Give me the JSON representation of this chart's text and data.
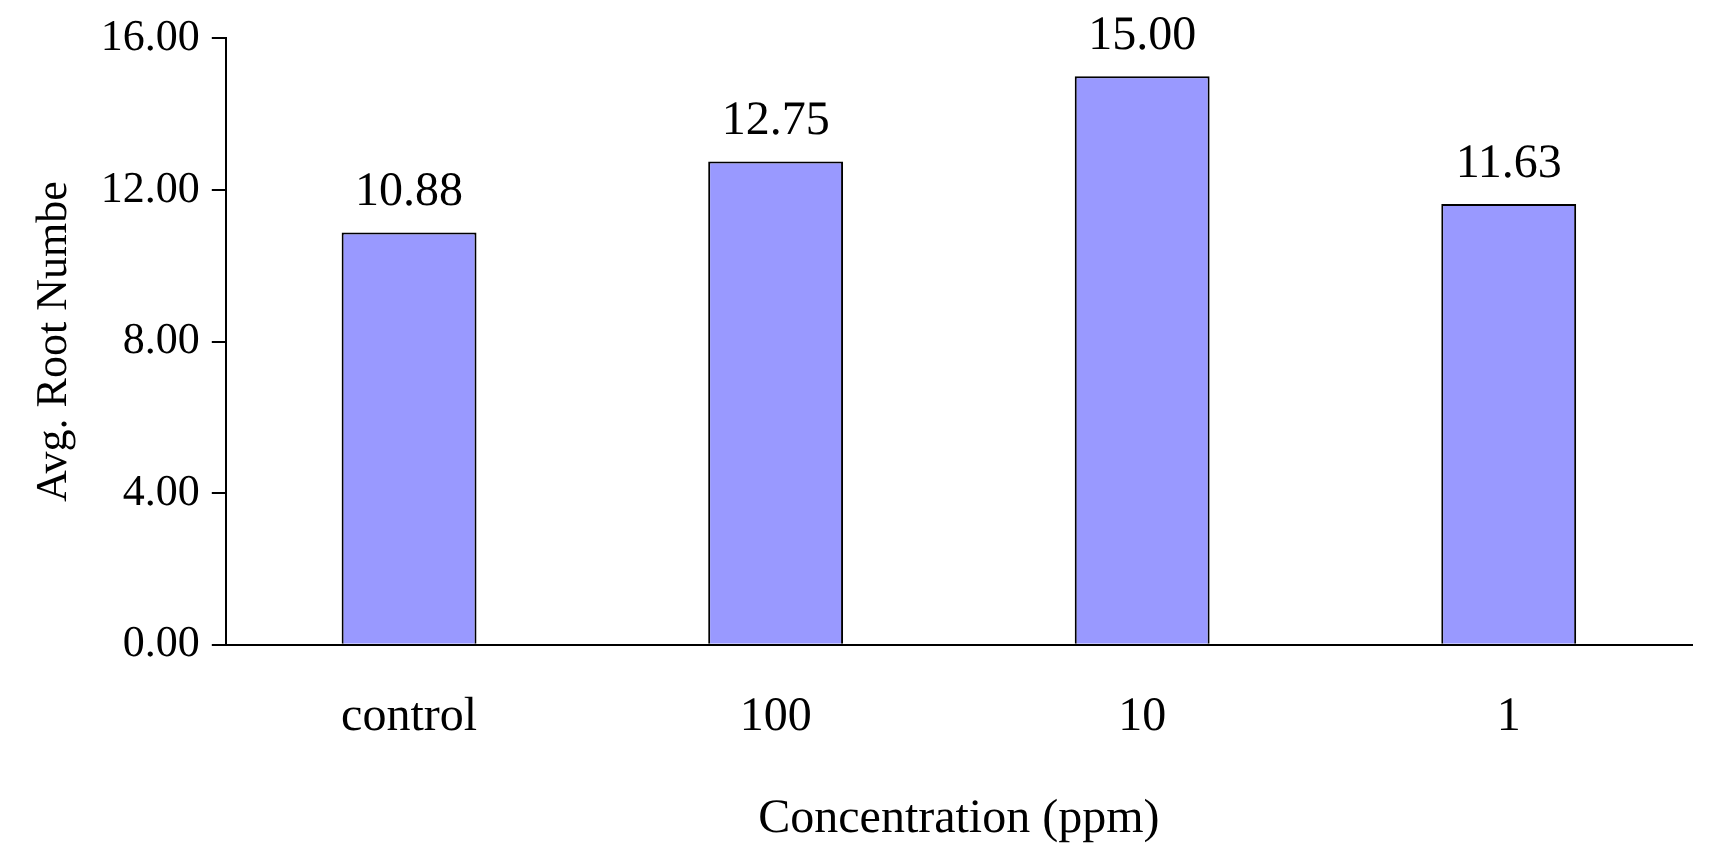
{
  "chart_data": {
    "type": "bar",
    "xlabel": "Concentration (ppm)",
    "ylabel": "Avg. Root Numbe",
    "categories": [
      "control",
      "100",
      "10",
      "1"
    ],
    "values": [
      10.88,
      12.75,
      15.0,
      11.63
    ],
    "value_labels": [
      "10.88",
      "12.75",
      "15.00",
      "11.63"
    ],
    "color": "#9999ff",
    "ylim": [
      0,
      16
    ],
    "yticks": [
      {
        "value": 0,
        "label": "0.00"
      },
      {
        "value": 4,
        "label": "4.00"
      },
      {
        "value": 8,
        "label": "8.00"
      },
      {
        "value": 12,
        "label": "12.00"
      },
      {
        "value": 16,
        "label": "16.00"
      }
    ],
    "grid": false,
    "legend": false
  }
}
